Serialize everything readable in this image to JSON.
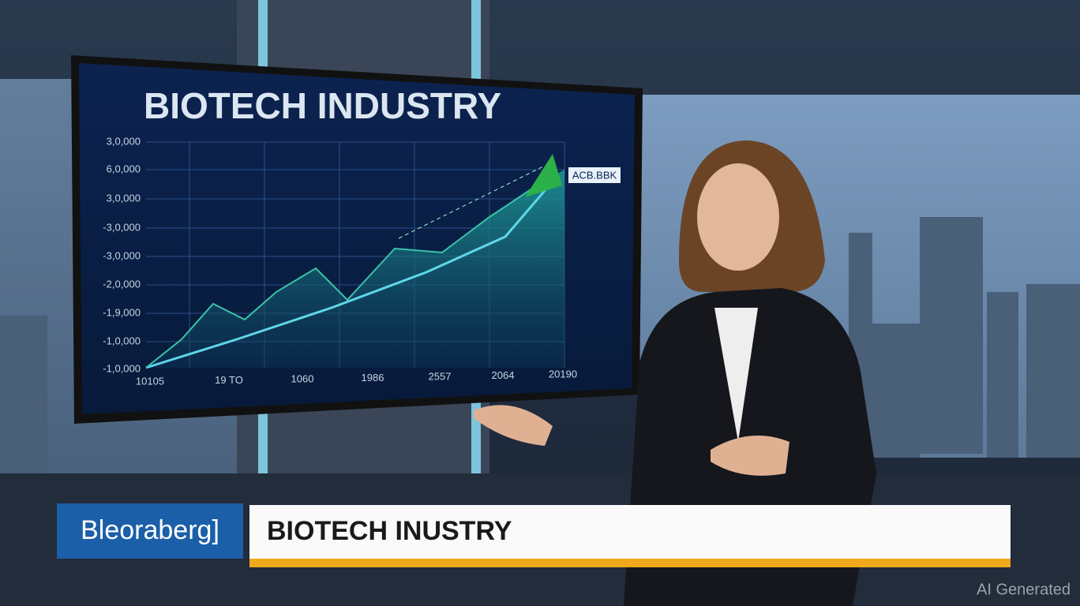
{
  "screen": {
    "title": "BIOTECH INDUSTRY",
    "y_labels": [
      "3,0,000",
      "6,0,000",
      "3,0,000",
      "-3,0,000",
      "-3,0,000",
      "-2,0,000",
      "-1,9,000",
      "-1,0,000",
      "-1,0,000"
    ],
    "x_labels": [
      "10105",
      "19 TO",
      "1060",
      "1986",
      "2557",
      "2064",
      "20190"
    ],
    "callout": "ACB.BBK"
  },
  "lower_third": {
    "logo": "Bleoraberg]",
    "headline": "BIOTECH INUSTRY"
  },
  "watermark": "AI Generated"
}
